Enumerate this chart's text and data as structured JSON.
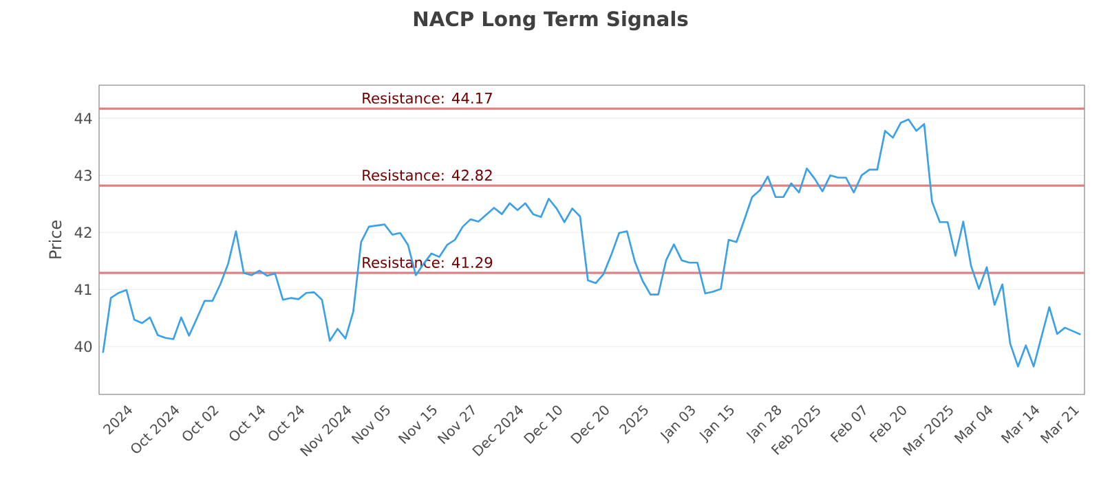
{
  "chart_data": {
    "type": "line",
    "title": "NACP Long Term Signals",
    "ylabel": "Price",
    "categories": [
      null,
      null,
      null,
      "2024",
      null,
      null,
      null,
      null,
      null,
      "Oct 2024",
      null,
      null,
      null,
      null,
      "Oct 02",
      null,
      null,
      null,
      null,
      null,
      "Oct 14",
      null,
      null,
      null,
      null,
      "Oct 24",
      null,
      null,
      null,
      null,
      null,
      "Nov 2024",
      null,
      null,
      null,
      null,
      "Nov 05",
      null,
      null,
      null,
      null,
      null,
      "Nov 15",
      null,
      null,
      null,
      null,
      "Nov 27",
      null,
      null,
      null,
      null,
      null,
      "Dec 2024",
      null,
      null,
      null,
      null,
      "Dec 10",
      null,
      null,
      null,
      null,
      null,
      "Dec 20",
      null,
      null,
      null,
      null,
      "2025",
      null,
      null,
      null,
      null,
      null,
      "Jan 03",
      null,
      null,
      null,
      null,
      "Jan 15",
      null,
      null,
      null,
      null,
      null,
      "Jan 28",
      null,
      null,
      null,
      null,
      "Feb 2025",
      null,
      null,
      null,
      null,
      null,
      "Feb 07",
      null,
      null,
      null,
      null,
      "Feb 20",
      null,
      null,
      null,
      null,
      null,
      "Mar 2025",
      null,
      null,
      null,
      null,
      "Mar 04",
      null,
      null,
      null,
      null,
      null,
      "Mar 14",
      null,
      null,
      null,
      null,
      "Mar 21",
      null
    ],
    "series": [
      {
        "color": "#3aa0e8",
        "values": [
          39.89,
          40.85,
          40.94,
          40.99,
          40.47,
          40.41,
          40.51,
          40.2,
          40.15,
          40.13,
          40.51,
          40.19,
          40.49,
          40.8,
          40.8,
          41.09,
          41.45,
          42.02,
          41.29,
          41.25,
          41.33,
          41.24,
          41.28,
          40.82,
          40.85,
          40.83,
          40.94,
          40.95,
          40.82,
          40.1,
          40.31,
          40.14,
          40.61,
          41.83,
          42.1,
          42.12,
          42.14,
          41.96,
          41.99,
          41.78,
          41.25,
          41.45,
          41.63,
          41.57,
          41.78,
          41.87,
          42.1,
          42.23,
          42.19,
          42.31,
          42.43,
          42.32,
          42.51,
          42.39,
          42.51,
          42.32,
          42.27,
          42.59,
          42.42,
          42.18,
          42.42,
          42.28,
          41.16,
          41.11,
          41.27,
          41.61,
          41.99,
          42.02,
          41.49,
          41.15,
          40.91,
          40.91,
          41.51,
          41.79,
          41.51,
          41.47,
          41.47,
          40.93,
          40.96,
          41.01,
          41.87,
          41.83,
          42.22,
          42.62,
          42.74,
          42.98,
          42.62,
          42.62,
          42.86,
          42.7,
          43.12,
          42.94,
          42.72,
          43.0,
          42.96,
          42.96,
          42.7,
          43.0,
          43.1,
          43.1,
          43.78,
          43.66,
          43.92,
          43.98,
          43.78,
          43.9,
          42.54,
          42.18,
          42.18,
          41.59,
          42.19,
          41.41,
          41.01,
          41.39,
          40.73,
          41.09,
          40.05,
          39.65,
          40.02,
          39.65,
          40.17,
          40.69,
          40.22,
          40.33,
          40.27,
          40.21
        ]
      }
    ],
    "ylim": [
      39.16,
      44.58
    ],
    "yticks": [
      40,
      41,
      42,
      43,
      44
    ],
    "grid": "y",
    "marker": "none",
    "line_style": "solid",
    "ref_lines": [
      {
        "axis": "y",
        "value": 44.17,
        "label": "Resistance: 44.17",
        "color": "#e08080"
      },
      {
        "axis": "y",
        "value": 42.82,
        "label": "Resistance: 42.82",
        "color": "#e08080"
      },
      {
        "axis": "y",
        "value": 41.29,
        "label": "Resistance: 41.29",
        "color": "#e08080"
      }
    ]
  }
}
